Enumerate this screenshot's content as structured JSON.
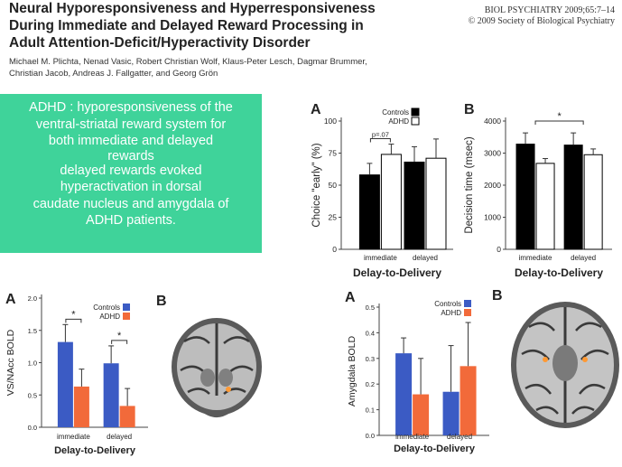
{
  "paper": {
    "title": "Neural Hyporesponsiveness and Hyperresponsiveness During Immediate and Delayed Reward Processing in Adult Attention-Deficit/Hyperactivity Disorder",
    "title_lines": [
      "Neural Hyporesponsiveness and Hyperresponsiveness",
      "During Immediate and Delayed Reward Processing in",
      "Adult Attention-Deficit/Hyperactivity Disorder"
    ],
    "journal_lines": [
      "BIOL PSYCHIATRY 2009;65:7–14",
      "© 2009 Society of Biological Psychiatry"
    ],
    "author_lines": [
      "Michael M. Plichta, Nenad Vasic, Robert Christian Wolf, Klaus-Peter Lesch, Dagmar Brummer,",
      "Christian Jacob, Andreas J. Fallgatter, and Georg Grön"
    ]
  },
  "summary": {
    "lines_1": [
      "ADHD : hyporesponsiveness of the",
      "ventral-striatal reward system for",
      "both immediate and delayed",
      "rewards"
    ],
    "lines_2": [
      "delayed rewards evoked",
      "hyperactivation in dorsal",
      "caudate  nucleus and amygdala of",
      "ADHD patients."
    ]
  },
  "colors": {
    "summary_bg": "#3fd39a",
    "controls_bar_top": "#000000",
    "adhd_bar_top": "#ffffff",
    "controls_bar_bottom": "#3b5bc4",
    "adhd_bar_bottom": "#f26a3a"
  },
  "brain_images": [
    {
      "panel": "B",
      "view": "coronal-slice"
    },
    {
      "panel": "B",
      "view": "axial-slice"
    }
  ],
  "chart_data": [
    {
      "type": "bar",
      "panel": "A",
      "categories": [
        "immediate",
        "delayed"
      ],
      "series": [
        {
          "name": "Controls",
          "values": [
            58,
            68
          ],
          "errors": [
            9,
            12
          ]
        },
        {
          "name": "ADHD",
          "values": [
            74,
            71
          ],
          "errors": [
            8,
            15
          ]
        }
      ],
      "xlabel": "Delay-to-Delivery",
      "ylabel": "Choice \"early\" (%)",
      "ylim": [
        0,
        100
      ],
      "yticks": [
        0,
        25,
        50,
        75,
        100
      ],
      "legend": "top-right",
      "annotations": [
        {
          "text": "p=.07",
          "pair": 0
        }
      ]
    },
    {
      "type": "bar",
      "panel": "B",
      "categories": [
        "immediate",
        "delayed"
      ],
      "series": [
        {
          "name": "Controls",
          "values": [
            3280,
            3250
          ],
          "errors": [
            350,
            380
          ]
        },
        {
          "name": "ADHD",
          "values": [
            2680,
            2950
          ],
          "errors": [
            150,
            180
          ]
        }
      ],
      "xlabel": "Delay-to-Delivery",
      "ylabel": "Decision time (msec)",
      "ylim": [
        0,
        4000
      ],
      "yticks": [
        0,
        1000,
        2000,
        3000,
        4000
      ],
      "annotations": [
        {
          "text": "*",
          "span": "across"
        }
      ]
    },
    {
      "type": "bar",
      "panel": "A",
      "categories": [
        "immediate",
        "delayed"
      ],
      "series": [
        {
          "name": "Controls",
          "values": [
            1.32,
            0.99
          ],
          "errors": [
            0.27,
            0.27
          ]
        },
        {
          "name": "ADHD",
          "values": [
            0.63,
            0.33
          ],
          "errors": [
            0.27,
            0.27
          ]
        }
      ],
      "xlabel": "Delay-to-Delivery",
      "ylabel": "VS/NAcc BOLD",
      "ylim": [
        0,
        2.0
      ],
      "yticks": [
        0,
        0.5,
        1.0,
        1.5,
        2.0
      ],
      "legend": "top-right",
      "annotations": [
        {
          "text": "*",
          "pair": 0
        },
        {
          "text": "*",
          "pair": 1
        }
      ]
    },
    {
      "type": "bar",
      "panel": "A",
      "categories": [
        "immediate",
        "delayed"
      ],
      "series": [
        {
          "name": "Controls",
          "values": [
            0.32,
            0.17
          ],
          "errors": [
            0.06,
            0.18
          ]
        },
        {
          "name": "ADHD",
          "values": [
            0.16,
            0.27
          ],
          "errors": [
            0.14,
            0.17
          ]
        }
      ],
      "xlabel": "Delay-to-Delivery",
      "ylabel": "Amygdala BOLD",
      "ylim": [
        0,
        0.5
      ],
      "yticks": [
        0,
        0.1,
        0.2,
        0.3,
        0.4,
        0.5
      ],
      "legend": "top-right"
    }
  ]
}
